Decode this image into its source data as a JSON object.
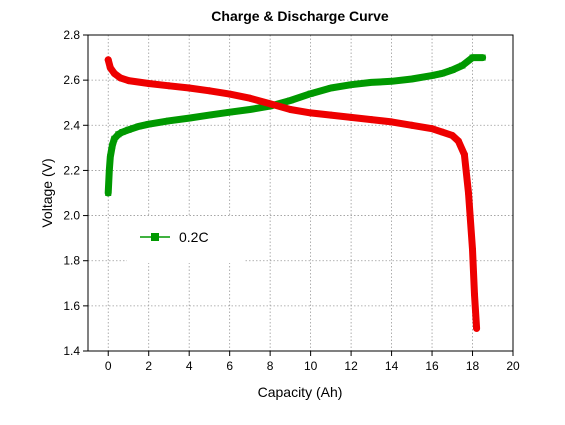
{
  "chart_data": {
    "type": "line",
    "title": "Charge & Discharge Curve",
    "xlabel": "Capacity (Ah)",
    "ylabel": "Voltage (V)",
    "xlim": [
      -1,
      20
    ],
    "ylim": [
      1.4,
      2.8
    ],
    "xticks": [
      0,
      2,
      4,
      6,
      8,
      10,
      12,
      14,
      16,
      18,
      20
    ],
    "yticks": [
      1.4,
      1.6,
      1.8,
      2.0,
      2.2,
      2.4,
      2.6,
      2.8
    ],
    "grid": true,
    "legend_position": "middle-left",
    "legend_label": "0.2C",
    "series": [
      {
        "color": "#009900",
        "marker": "square",
        "x": [
          0,
          0.05,
          0.1,
          0.2,
          0.3,
          0.5,
          0.7,
          1,
          1.5,
          2,
          3,
          4,
          5,
          6,
          7,
          8,
          9,
          10,
          11,
          12,
          13,
          14,
          15,
          16,
          16.5,
          17,
          17.5,
          18,
          18.5
        ],
        "y": [
          2.1,
          2.2,
          2.26,
          2.31,
          2.34,
          2.36,
          2.37,
          2.38,
          2.395,
          2.405,
          2.42,
          2.432,
          2.445,
          2.458,
          2.47,
          2.485,
          2.51,
          2.54,
          2.565,
          2.58,
          2.59,
          2.595,
          2.605,
          2.62,
          2.63,
          2.645,
          2.665,
          2.7,
          2.7
        ]
      },
      {
        "color": "#ee0000",
        "marker": "circle",
        "x": [
          0,
          0.1,
          0.3,
          0.6,
          1,
          2,
          3,
          4,
          5,
          6,
          7,
          8,
          9,
          10,
          11,
          12,
          13,
          14,
          15,
          16,
          16.5,
          17,
          17.3,
          17.6,
          17.8,
          18,
          18.1,
          18.2
        ],
        "y": [
          2.69,
          2.655,
          2.63,
          2.61,
          2.598,
          2.585,
          2.575,
          2.565,
          2.553,
          2.538,
          2.52,
          2.495,
          2.47,
          2.455,
          2.445,
          2.435,
          2.425,
          2.415,
          2.4,
          2.385,
          2.37,
          2.355,
          2.33,
          2.27,
          2.1,
          1.85,
          1.65,
          1.5
        ]
      }
    ]
  }
}
